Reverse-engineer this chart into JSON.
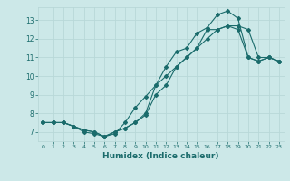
{
  "xlabel": "Humidex (Indice chaleur)",
  "bg_color": "#cce8e8",
  "grid_color": "#b8d8d8",
  "line_color": "#1a6b6b",
  "xlim": [
    -0.5,
    23.5
  ],
  "ylim": [
    6.5,
    13.7
  ],
  "xticks": [
    0,
    1,
    2,
    3,
    4,
    5,
    6,
    7,
    8,
    9,
    10,
    11,
    12,
    13,
    14,
    15,
    16,
    17,
    18,
    19,
    20,
    21,
    22,
    23
  ],
  "yticks": [
    7,
    8,
    9,
    10,
    11,
    12,
    13
  ],
  "line1_x": [
    0,
    1,
    2,
    3,
    4,
    5,
    6,
    7,
    8,
    9,
    10,
    11,
    12,
    13,
    14,
    15,
    16,
    17,
    18,
    19,
    20,
    21,
    22,
    23
  ],
  "line1_y": [
    7.5,
    7.5,
    7.5,
    7.3,
    7.1,
    7.0,
    6.75,
    7.0,
    7.2,
    7.5,
    8.0,
    9.5,
    10.5,
    11.3,
    11.5,
    12.3,
    12.6,
    13.3,
    13.5,
    13.1,
    11.0,
    10.8,
    11.0,
    10.8
  ],
  "line2_x": [
    0,
    1,
    2,
    3,
    4,
    5,
    6,
    7,
    8,
    9,
    10,
    11,
    12,
    13,
    14,
    15,
    16,
    17,
    18,
    19,
    20,
    21,
    22,
    23
  ],
  "line2_y": [
    7.5,
    7.5,
    7.5,
    7.3,
    7.1,
    7.0,
    6.75,
    7.0,
    7.2,
    7.5,
    7.9,
    9.0,
    9.5,
    10.5,
    11.0,
    11.5,
    12.5,
    12.5,
    12.7,
    12.5,
    11.0,
    10.8,
    11.0,
    10.8
  ],
  "line3_x": [
    0,
    1,
    2,
    3,
    4,
    5,
    6,
    7,
    8,
    9,
    10,
    11,
    12,
    13,
    14,
    15,
    16,
    17,
    18,
    19,
    20,
    21,
    22,
    23
  ],
  "line3_y": [
    7.5,
    7.5,
    7.5,
    7.3,
    7.0,
    6.9,
    6.75,
    6.9,
    7.5,
    8.3,
    8.9,
    9.5,
    10.0,
    10.5,
    11.0,
    11.5,
    12.0,
    12.5,
    12.7,
    12.7,
    12.5,
    11.0,
    11.0,
    10.8
  ]
}
